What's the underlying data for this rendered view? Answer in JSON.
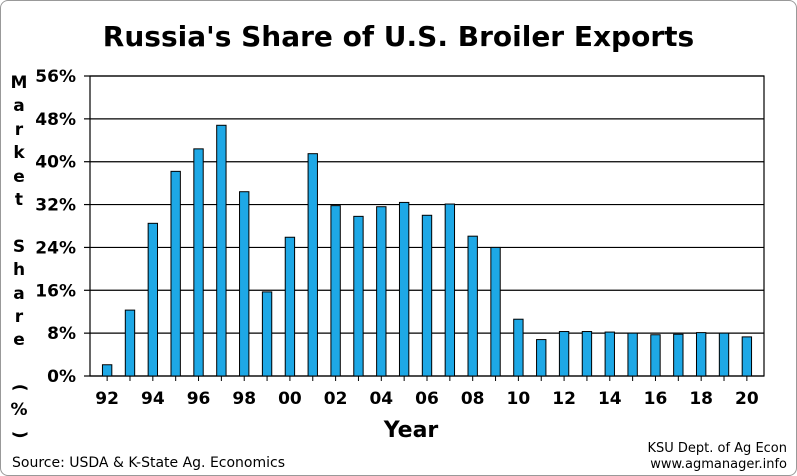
{
  "chart_data": {
    "type": "bar",
    "title": "Russia's Share of U.S. Broiler Exports",
    "xlabel": "Year",
    "ylabel": "Market Share (%)",
    "ylim": [
      0,
      56
    ],
    "yticks": [
      "0%",
      "8%",
      "16%",
      "24%",
      "32%",
      "40%",
      "48%",
      "56%"
    ],
    "grid": true,
    "bar_color": "#1ea8e6",
    "categories": [
      "92",
      "93",
      "94",
      "95",
      "96",
      "97",
      "98",
      "99",
      "00",
      "01",
      "02",
      "03",
      "04",
      "05",
      "06",
      "07",
      "08",
      "09",
      "10",
      "11",
      "12",
      "13",
      "14",
      "15",
      "16",
      "17",
      "18",
      "19",
      "20"
    ],
    "xtick_labels": [
      "92",
      "94",
      "96",
      "98",
      "00",
      "02",
      "04",
      "06",
      "08",
      "10",
      "12",
      "14",
      "16",
      "18",
      "20"
    ],
    "values": [
      2.1,
      12.3,
      28.5,
      38.2,
      42.4,
      46.8,
      34.4,
      15.7,
      25.9,
      41.5,
      31.8,
      29.8,
      31.6,
      32.4,
      30.0,
      32.1,
      26.1,
      24.0,
      10.6,
      6.8,
      8.3,
      8.3,
      8.2,
      8.0,
      7.7,
      7.8,
      8.1,
      8.0,
      7.3
    ]
  },
  "source": "Source:  USDA & K-State Ag. Economics",
  "credit_line1": "KSU Dept. of Ag Econ",
  "credit_line2": "www.agmanager.info"
}
